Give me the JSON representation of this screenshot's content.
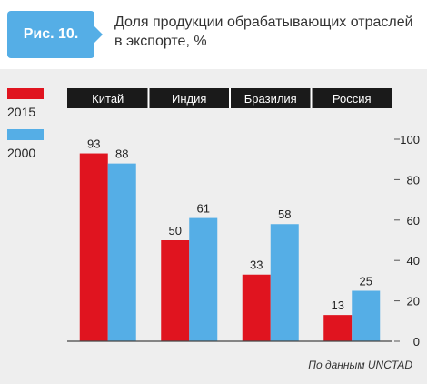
{
  "figure": {
    "label": "Рис. 10.",
    "title": "Доля продукции обрабатывающих отраслей в экспорте, %"
  },
  "source": "По данным UNCTAD",
  "colors": {
    "accent": "#55aee6",
    "s2015": "#e0141f",
    "s2000": "#55aee6",
    "tab": "#1a1a1a",
    "band": "#eeeeee"
  },
  "legend": [
    {
      "label": "2015",
      "color": "#e0141f"
    },
    {
      "label": "2000",
      "color": "#55aee6"
    }
  ],
  "chart_data": {
    "type": "bar",
    "categories": [
      "Китай",
      "Индия",
      "Бразилия",
      "Россия"
    ],
    "series": [
      {
        "name": "2015",
        "values": [
          93,
          50,
          33,
          13
        ]
      },
      {
        "name": "2000",
        "values": [
          88,
          61,
          58,
          25
        ]
      }
    ],
    "y_ticks": [
      0,
      20,
      40,
      60,
      80,
      100
    ],
    "ylim": [
      0,
      100
    ],
    "y_axis_side": "right",
    "legend_position": "left",
    "grid": false
  }
}
